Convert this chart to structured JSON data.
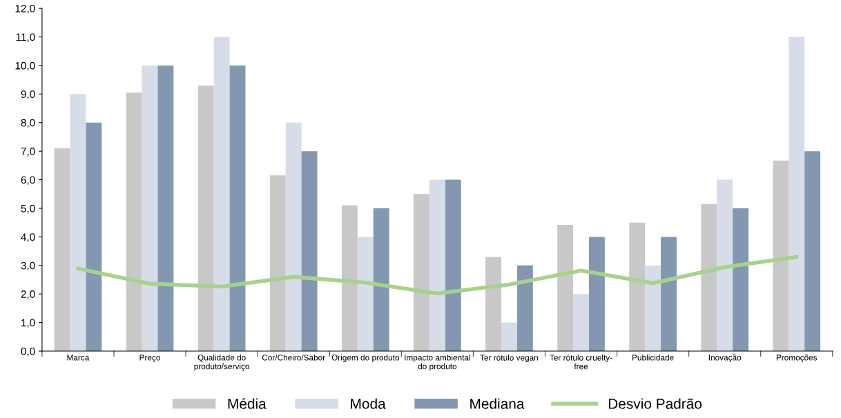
{
  "chart_data": {
    "type": "bar",
    "categories": [
      "Marca",
      "Preço",
      "Qualidade do\nproduto/serviço",
      "Cor/Cheiro/Sabor",
      "Origem do produto",
      "Impacto ambiental\ndo produto",
      "Ter rótulo vegan",
      "Ter rótulo cruelty-\nfree",
      "Publicidade",
      "Inovação",
      "Promoções"
    ],
    "series": [
      {
        "name": "Média",
        "color": "#c8c8c8",
        "values": [
          7.1,
          9.05,
          9.3,
          6.15,
          5.1,
          5.5,
          3.3,
          4.42,
          4.5,
          5.15,
          6.67
        ]
      },
      {
        "name": "Moda",
        "color": "#d6dde8",
        "values": [
          9,
          10,
          11,
          8,
          4,
          6,
          1,
          2,
          3,
          6,
          11
        ]
      },
      {
        "name": "Mediana",
        "color": "#8497b0",
        "values": [
          8,
          10,
          10,
          7,
          5,
          6,
          3,
          4,
          4,
          5,
          7
        ]
      },
      {
        "name": "Desvio Padrão",
        "type": "line",
        "color": "#a9d18e",
        "values": [
          2.89,
          2.36,
          2.26,
          2.6,
          2.4,
          2.02,
          2.33,
          2.82,
          2.38,
          2.94,
          3.3
        ]
      }
    ],
    "ylim": [
      0,
      12
    ],
    "yticks": [
      {
        "value": 0,
        "label": "0,0"
      },
      {
        "value": 1,
        "label": "1,0"
      },
      {
        "value": 2,
        "label": "2,0"
      },
      {
        "value": 3,
        "label": "3,0"
      },
      {
        "value": 4,
        "label": "4,0"
      },
      {
        "value": 5,
        "label": "5,0"
      },
      {
        "value": 6,
        "label": "6,0"
      },
      {
        "value": 7,
        "label": "7,0"
      },
      {
        "value": 8,
        "label": "8,0"
      },
      {
        "value": 9,
        "label": "9,0"
      },
      {
        "value": 10,
        "label": "10,0"
      },
      {
        "value": 11,
        "label": "11,0"
      },
      {
        "value": 12,
        "label": "12,0"
      }
    ],
    "grid": false,
    "legend": "bottom",
    "marker": "none",
    "line_style": "solid"
  }
}
